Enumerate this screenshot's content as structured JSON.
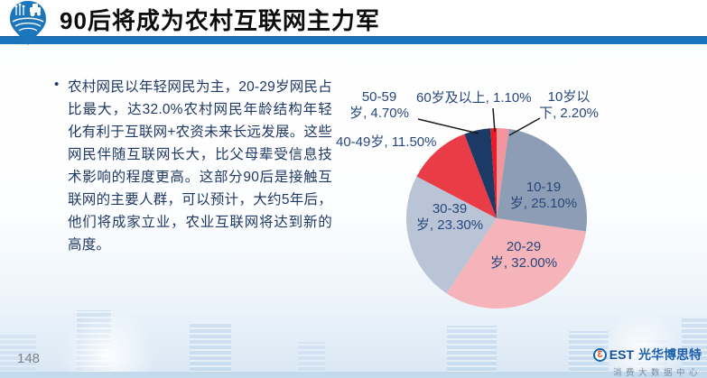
{
  "header": {
    "title": "90后将成为农村互联网主力军"
  },
  "content": {
    "bullet": "•",
    "paragraph": "农村网民以年轻网民为主，20-29岁网民占比最大，达32.0%农村网民年龄结构年轻化有利于互联网+农资未来长远发展。这些网民伴随互联网长大，比父母辈受信息技术影响的程度更高。这部分90后是接触互联网的主要人群，可以预计，大约5年后，他们将成家立业，农业互联网将达到新的高度。"
  },
  "chart_data": {
    "type": "pie",
    "title": "",
    "start_angle_deg": -90,
    "direction": "clockwise",
    "legend_position": "none",
    "label_style": "category-name, percent",
    "slices": [
      {
        "key": "under-10",
        "name": "10岁以下",
        "value": 2.2,
        "color": "#F2959D",
        "label_lines": [
          "10岁以",
          "下, 2.20%"
        ]
      },
      {
        "key": "10-19",
        "name": "10-19岁",
        "value": 25.1,
        "color": "#8C9DB5",
        "label_lines": [
          "10-19",
          "岁, 25.10%"
        ]
      },
      {
        "key": "20-29",
        "name": "20-29岁",
        "value": 32.0,
        "color": "#F5B3BA",
        "label_lines": [
          "20-29",
          "岁, 32.00%"
        ]
      },
      {
        "key": "30-39",
        "name": "30-39岁",
        "value": 23.3,
        "color": "#B9C4D6",
        "label_lines": [
          "30-39",
          "岁, 23.30%"
        ]
      },
      {
        "key": "40-49",
        "name": "40-49岁",
        "value": 11.5,
        "color": "#E93C46",
        "label_lines": [
          "40-49岁, 11.50%"
        ]
      },
      {
        "key": "50-59",
        "name": "50-59岁",
        "value": 4.7,
        "color": "#1B3A66",
        "label_lines": [
          "50-59",
          "岁, 4.70%"
        ]
      },
      {
        "key": "60-plus",
        "name": "60岁及以上",
        "value": 1.1,
        "color": "#EB1C28",
        "label_lines": [
          "60岁及以上, 1.10%"
        ]
      }
    ]
  },
  "footer": {
    "page_number": "148",
    "brand_mark": "3",
    "brand_text": "EST",
    "brand_name": "光华博思特",
    "brand_subtitle": "消费大数据中心"
  },
  "colors": {
    "header_bar": "#1b74bb",
    "title_text": "#0d0d0d",
    "body_text": "#1f3864",
    "label_text": "#27477a"
  }
}
